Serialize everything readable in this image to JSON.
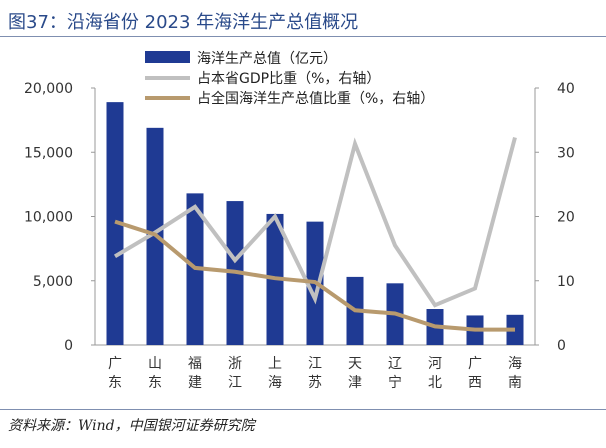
{
  "title": "图37：沿海省份 2023 年海洋生产总值概况",
  "source": "资料来源：Wind，中国银河证券研究院",
  "chart_data": {
    "type": "bar",
    "categories": [
      "广东",
      "山东",
      "福建",
      "浙江",
      "上海",
      "江苏",
      "天津",
      "辽宁",
      "河北",
      "广西",
      "海南"
    ],
    "series": [
      {
        "name": "海洋生产总值（亿元）",
        "kind": "bar",
        "axis": "left",
        "color": "#1f3a93",
        "values": [
          18900,
          16900,
          11800,
          11200,
          10200,
          9600,
          5300,
          4800,
          2800,
          2300,
          2350
        ]
      },
      {
        "name": "占本省GDP比重（%，右轴）",
        "kind": "line",
        "axis": "right",
        "color": "#c0c0c0",
        "values": [
          13.8,
          17.5,
          21.5,
          13.2,
          20.0,
          7.2,
          31.3,
          15.5,
          6.2,
          8.8,
          32.3
        ]
      },
      {
        "name": "占全国海洋生产总值比重（%，右轴）",
        "kind": "line",
        "axis": "right",
        "color": "#b89a6e",
        "values": [
          19.2,
          17.2,
          12.0,
          11.4,
          10.4,
          9.8,
          5.4,
          4.9,
          2.9,
          2.4,
          2.4
        ]
      }
    ],
    "y_left": {
      "min": 0,
      "max": 20000,
      "ticks": [
        "0",
        "5,000",
        "10,000",
        "15,000",
        "20,000"
      ]
    },
    "y_right": {
      "min": 0,
      "max": 40,
      "ticks": [
        "0",
        "10",
        "20",
        "30",
        "40"
      ]
    },
    "grid": false,
    "legend": "top-center"
  }
}
